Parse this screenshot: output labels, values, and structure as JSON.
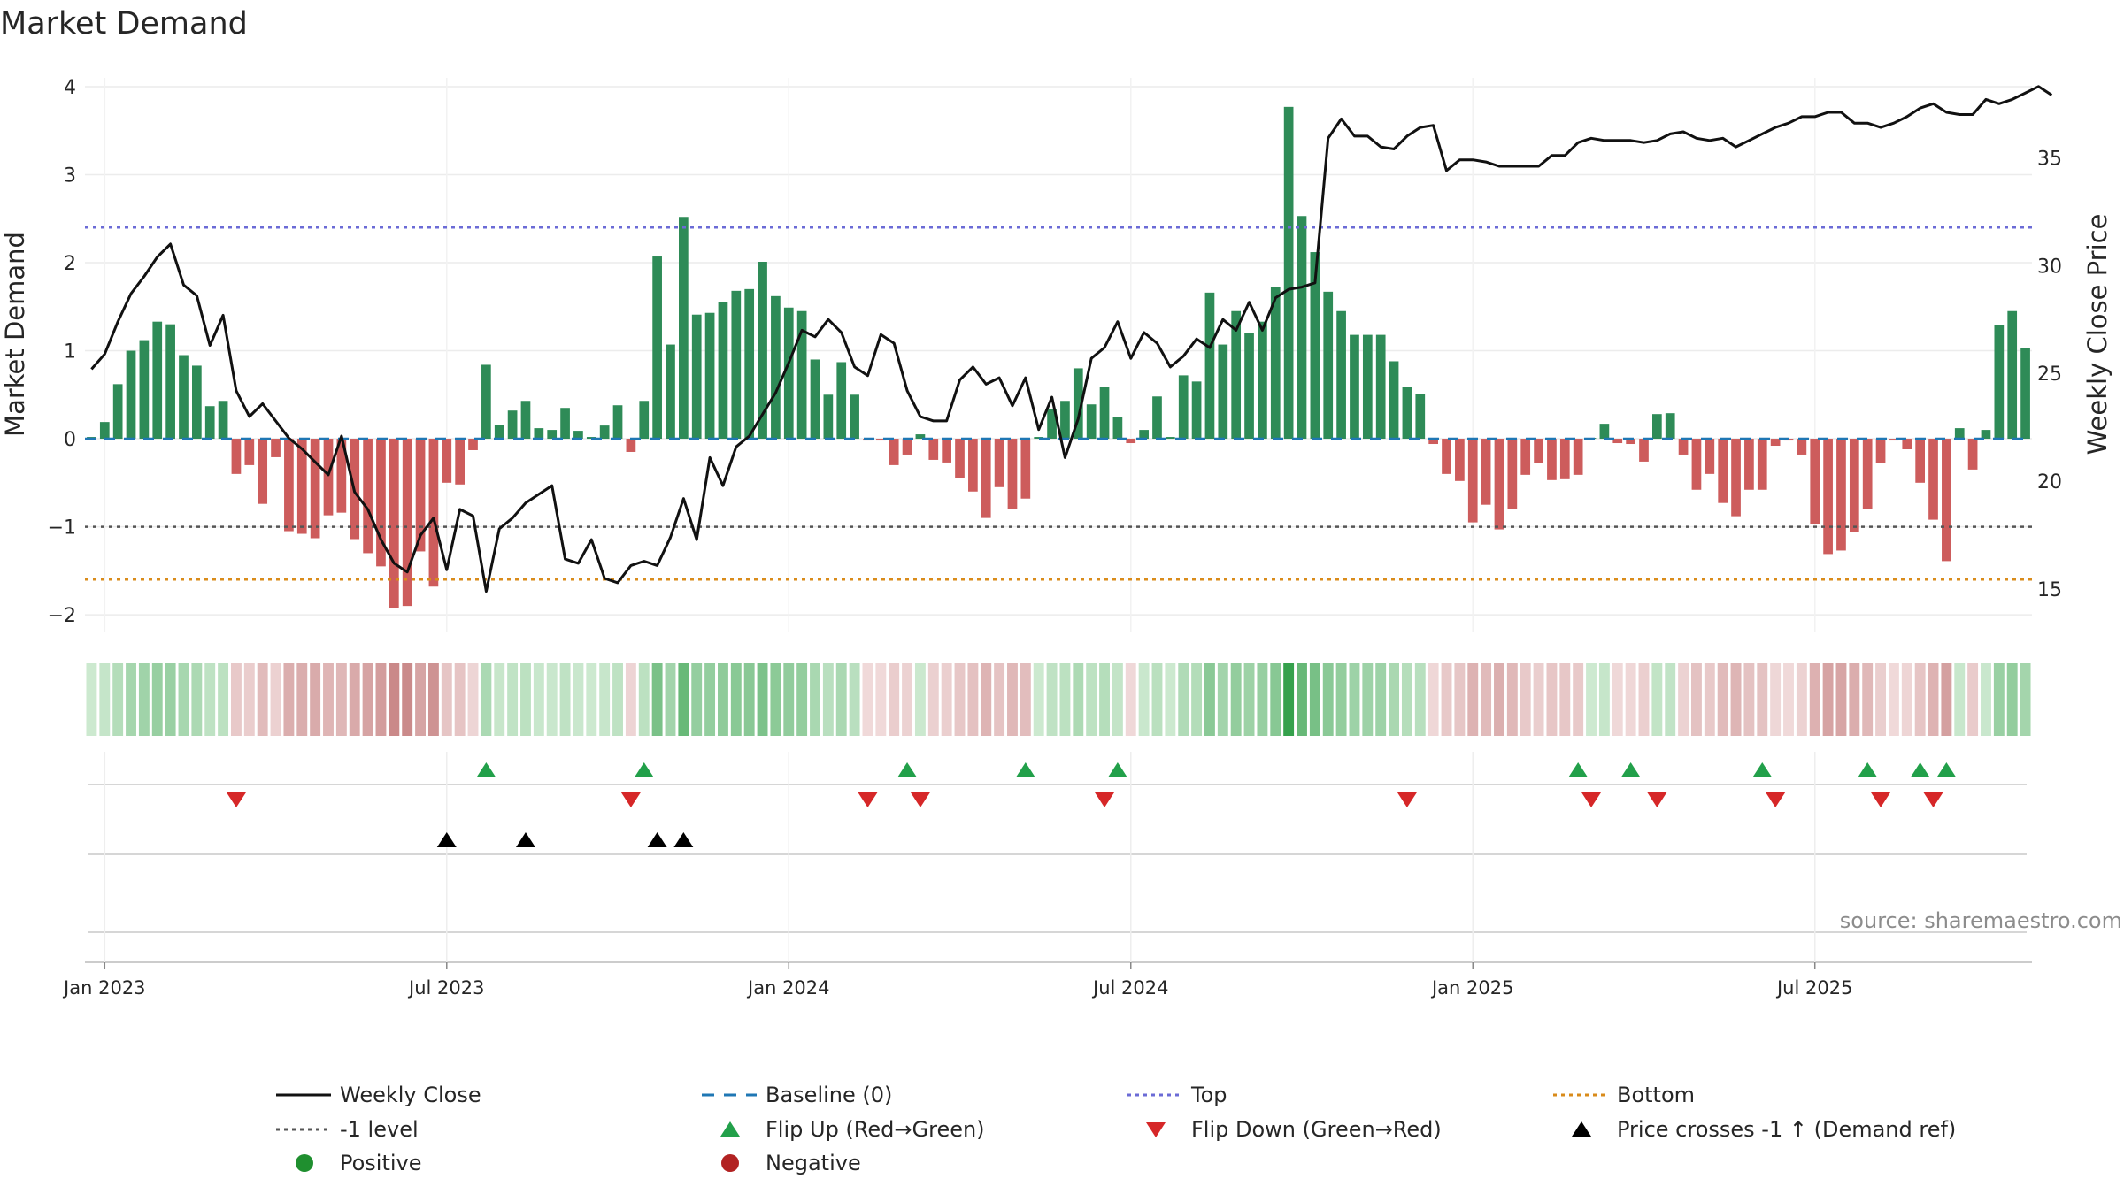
{
  "chart_data": {
    "type": "bar",
    "title": "Market Demand",
    "ylabel": "Market Demand",
    "y2label": "Weekly Close Price",
    "ylim": [
      -2.2,
      4.1
    ],
    "y2lim": [
      13,
      38.7
    ],
    "yticks": [
      -2,
      -1,
      0,
      1,
      2,
      3,
      4
    ],
    "y2ticks": [
      15,
      20,
      25,
      30,
      35
    ],
    "xlabels": [
      "Jan 2023",
      "Jul 2023",
      "Jan 2024",
      "Jul 2024",
      "Jan 2025",
      "Jul 2025"
    ],
    "xlabel_week_index": [
      1,
      27,
      53,
      79,
      105,
      131
    ],
    "levels": {
      "baseline": 0,
      "top": 2.4,
      "minus_one": -1,
      "bottom": -1.6
    },
    "demand": [
      0.02,
      0.19,
      0.62,
      1.0,
      1.12,
      1.33,
      1.3,
      0.95,
      0.83,
      0.37,
      0.43,
      -0.4,
      -0.3,
      -0.74,
      -0.21,
      -1.05,
      -1.08,
      -1.13,
      -0.87,
      -0.84,
      -1.14,
      -1.3,
      -1.45,
      -1.92,
      -1.9,
      -1.28,
      -1.68,
      -0.5,
      -0.52,
      -0.13,
      0.84,
      0.16,
      0.32,
      0.43,
      0.12,
      0.1,
      0.35,
      0.09,
      0.02,
      0.15,
      0.38,
      -0.15,
      0.43,
      2.07,
      1.07,
      2.52,
      1.41,
      1.43,
      1.55,
      1.68,
      1.7,
      2.01,
      1.62,
      1.49,
      1.45,
      0.9,
      0.5,
      0.87,
      0.5,
      -0.02,
      -0.02,
      -0.3,
      -0.18,
      0.05,
      -0.24,
      -0.27,
      -0.45,
      -0.6,
      -0.9,
      -0.55,
      -0.8,
      -0.68,
      0.02,
      0.34,
      0.43,
      0.8,
      0.39,
      0.59,
      0.25,
      -0.05,
      0.1,
      0.48,
      0.02,
      0.72,
      0.65,
      1.66,
      1.07,
      1.45,
      1.2,
      1.33,
      1.72,
      3.77,
      2.53,
      2.12,
      1.67,
      1.45,
      1.18,
      1.18,
      1.18,
      0.88,
      0.59,
      0.51,
      -0.06,
      -0.4,
      -0.48,
      -0.95,
      -0.75,
      -1.03,
      -0.8,
      -0.41,
      -0.28,
      -0.47,
      -0.46,
      -0.41,
      0.01,
      0.17,
      -0.05,
      -0.06,
      -0.26,
      0.28,
      0.29,
      -0.18,
      -0.58,
      -0.4,
      -0.73,
      -0.88,
      -0.58,
      -0.58,
      -0.08,
      -0.02,
      -0.18,
      -0.97,
      -1.31,
      -1.27,
      -1.06,
      -0.8,
      -0.28,
      -0.02,
      -0.12,
      -0.5,
      -0.92,
      -1.39,
      0.12,
      -0.35,
      0.1,
      1.29,
      1.45,
      1.03
    ],
    "close": [
      25.2,
      25.9,
      27.4,
      28.7,
      29.5,
      30.4,
      31.0,
      29.1,
      28.6,
      26.3,
      27.7,
      24.2,
      23.0,
      23.6,
      22.8,
      22.0,
      21.5,
      20.9,
      20.3,
      22.1,
      19.5,
      18.7,
      17.3,
      16.2,
      15.8,
      17.5,
      18.3,
      15.9,
      18.7,
      18.4,
      14.9,
      17.8,
      18.3,
      19.0,
      19.4,
      19.8,
      16.4,
      16.2,
      17.3,
      15.5,
      15.3,
      16.1,
      16.3,
      16.1,
      17.4,
      19.2,
      17.3,
      21.1,
      19.8,
      21.6,
      22.1,
      23.1,
      24.1,
      25.5,
      27.0,
      26.7,
      27.5,
      26.9,
      25.3,
      24.9,
      26.8,
      26.4,
      24.2,
      23.0,
      22.8,
      22.8,
      24.7,
      25.3,
      24.5,
      24.8,
      23.5,
      24.8,
      22.4,
      23.9,
      21.1,
      22.9,
      25.7,
      26.2,
      27.4,
      25.7,
      26.9,
      26.4,
      25.3,
      25.8,
      26.6,
      26.2,
      27.5,
      27.0,
      28.3,
      27.0,
      28.5,
      28.9,
      29.0,
      29.2,
      35.9,
      36.8,
      36.0,
      36.0,
      35.5,
      35.4,
      36.0,
      36.4,
      36.5,
      34.4,
      34.9,
      34.9,
      34.8,
      34.6,
      34.6,
      34.6,
      34.6,
      35.1,
      35.1,
      35.7,
      35.9,
      35.8,
      35.8,
      35.8,
      35.7,
      35.8,
      36.1,
      36.2,
      35.9,
      35.8,
      35.9,
      35.5,
      35.8,
      36.1,
      36.4,
      36.6,
      36.9,
      36.9,
      37.1,
      37.1,
      36.6,
      36.6,
      36.4,
      36.6,
      36.9,
      37.3,
      37.5,
      37.1,
      37.0,
      37.0,
      37.7,
      37.5,
      37.7,
      38.0,
      38.3,
      37.9
    ],
    "flip_up_weeks": [
      30,
      42,
      62,
      71,
      78,
      113,
      117,
      127,
      135,
      139,
      141
    ],
    "flip_down_weeks": [
      11,
      41,
      59,
      63,
      77,
      100,
      114,
      119,
      128,
      136,
      140
    ],
    "price_cross_weeks": [
      27,
      33,
      43,
      45
    ],
    "legend": [
      {
        "label": "Weekly Close",
        "kind": "line",
        "color": "#111111"
      },
      {
        "label": "Baseline (0)",
        "kind": "dash",
        "color": "#1f77b4"
      },
      {
        "label": "Top",
        "kind": "dot",
        "color": "#6b6bd6"
      },
      {
        "label": "Bottom",
        "kind": "dot",
        "color": "#d98b1a"
      },
      {
        "label": "-1 level",
        "kind": "dot",
        "color": "#555555"
      },
      {
        "label": "Flip Up (Red→Green)",
        "kind": "tri-up",
        "color": "#22a04a"
      },
      {
        "label": "Flip Down (Green→Red)",
        "kind": "tri-down",
        "color": "#d62728"
      },
      {
        "label": "Price crosses -1 ↑ (Demand ref)",
        "kind": "tri-up",
        "color": "#000000"
      },
      {
        "label": "Positive",
        "kind": "circle",
        "color": "#1f8f2f"
      },
      {
        "label": "Negative",
        "kind": "circle",
        "color": "#b22222"
      }
    ],
    "colors": {
      "positive": "#2e8b57",
      "negative": "#cd5c5c",
      "close": "#111111"
    },
    "source": "source: sharemaestro.com"
  }
}
